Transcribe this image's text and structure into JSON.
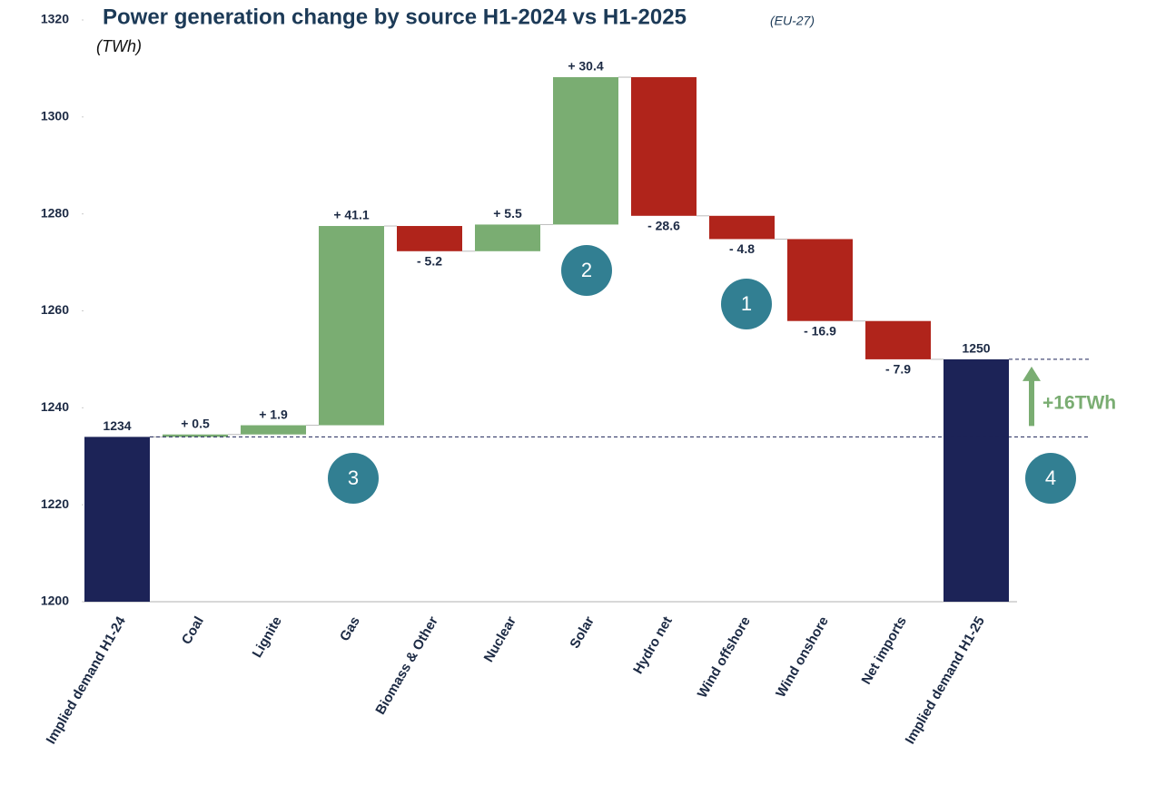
{
  "chart_data": {
    "type": "waterfall",
    "title": "Power generation change by source H1-2024 vs H1-2025",
    "subtitle": "(EU-27)",
    "y_label": "(TWh)",
    "categories": [
      "Implied demand H1-24",
      "Coal",
      "Lignite",
      "Gas",
      "Biomass & Other",
      "Nuclear",
      "Solar",
      "Hydro net",
      "Wind offshore",
      "Wind onshore",
      "Net imports",
      "Implied demand H1-25"
    ],
    "values": [
      1234,
      0.5,
      1.9,
      41.1,
      -5.2,
      5.5,
      30.4,
      -28.6,
      -4.8,
      -16.9,
      -7.9,
      1250
    ],
    "value_labels": [
      "1234",
      "+ 0.5",
      "+ 1.9",
      "+ 41.1",
      "- 5.2",
      "+ 5.5",
      "+ 30.4",
      "- 28.6",
      "- 4.8",
      "- 16.9",
      "- 7.9",
      "1250"
    ],
    "measure": [
      "absolute",
      "relative",
      "relative",
      "relative",
      "relative",
      "relative",
      "relative",
      "relative",
      "relative",
      "relative",
      "relative",
      "absolute"
    ],
    "colors": {
      "total": "#1c2357",
      "increase": "#7aad72",
      "decrease": "#b0241b"
    },
    "ylim": [
      1200,
      1320
    ],
    "yticks": [
      1200,
      1220,
      1240,
      1260,
      1280,
      1300,
      1320
    ],
    "annotations": [
      {
        "text": "+16TWh",
        "color": "#7aad72"
      },
      {
        "text": "1"
      },
      {
        "text": "2"
      },
      {
        "text": "3"
      },
      {
        "text": "4"
      }
    ]
  }
}
